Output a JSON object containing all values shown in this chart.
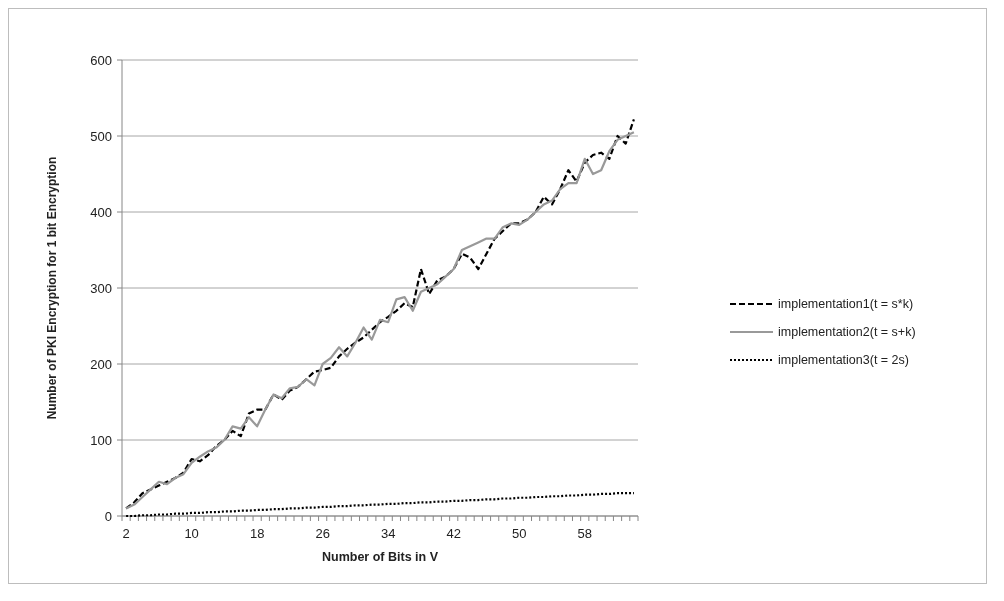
{
  "chart_data": {
    "type": "line",
    "xlabel": "Number of Bits in V",
    "ylabel": "Number of PKI Encryption for 1 bit Encryption",
    "categories": [
      "2",
      null,
      null,
      null,
      null,
      null,
      null,
      null,
      "10",
      null,
      null,
      null,
      null,
      null,
      null,
      null,
      "18",
      null,
      null,
      null,
      null,
      null,
      null,
      null,
      "26",
      null,
      null,
      null,
      null,
      null,
      null,
      null,
      "34",
      null,
      null,
      null,
      null,
      null,
      null,
      null,
      "42",
      null,
      null,
      null,
      null,
      null,
      null,
      null,
      "50",
      null,
      null,
      null,
      null,
      null,
      null,
      null,
      "58",
      null,
      null,
      null,
      null,
      null,
      null
    ],
    "ylim": [
      0,
      600
    ],
    "yticks": [
      0,
      100,
      200,
      300,
      400,
      500,
      600
    ],
    "grid": "y",
    "legend": "right",
    "marker": "none",
    "series": [
      {
        "name": "implementation1(t = s*k)",
        "color": "#000000",
        "line_style": "dashed",
        "values": [
          10,
          18,
          30,
          35,
          40,
          45,
          50,
          57,
          75,
          72,
          80,
          92,
          100,
          112,
          105,
          135,
          140,
          140,
          160,
          153,
          165,
          170,
          180,
          190,
          192,
          195,
          210,
          220,
          228,
          235,
          245,
          255,
          262,
          270,
          280,
          275,
          325,
          292,
          310,
          315,
          325,
          345,
          340,
          325,
          345,
          365,
          375,
          385,
          385,
          390,
          400,
          420,
          410,
          430,
          455,
          440,
          465,
          475,
          478,
          470,
          500,
          490,
          522
        ]
      },
      {
        "name": "implementation2(t = s+k)",
        "color": "#999999",
        "line_style": "solid",
        "values": [
          10,
          15,
          25,
          35,
          45,
          42,
          50,
          55,
          70,
          78,
          85,
          90,
          100,
          118,
          115,
          130,
          118,
          140,
          160,
          155,
          168,
          170,
          180,
          172,
          200,
          208,
          222,
          210,
          228,
          248,
          232,
          258,
          255,
          285,
          288,
          270,
          295,
          300,
          305,
          315,
          325,
          350,
          355,
          360,
          365,
          365,
          380,
          385,
          383,
          390,
          400,
          410,
          415,
          430,
          438,
          438,
          470,
          450,
          455,
          480,
          495,
          500,
          505
        ]
      },
      {
        "name": "implementation3(t = 2s)",
        "color": "#000000",
        "line_style": "dotted",
        "values": [
          0,
          0,
          1,
          1,
          2,
          2,
          3,
          3,
          4,
          4,
          5,
          5,
          6,
          6,
          7,
          7,
          8,
          8,
          9,
          9,
          10,
          10,
          11,
          11,
          12,
          12,
          13,
          13,
          14,
          14,
          15,
          15,
          16,
          16,
          17,
          17,
          18,
          18,
          19,
          19,
          20,
          20,
          21,
          21,
          22,
          22,
          23,
          23,
          24,
          24,
          25,
          25,
          26,
          26,
          27,
          27,
          28,
          28,
          29,
          29,
          30,
          30,
          30
        ]
      }
    ]
  }
}
